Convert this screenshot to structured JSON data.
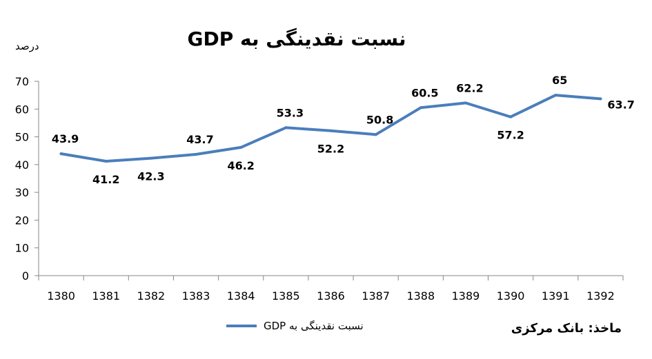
{
  "chart_data": {
    "type": "line",
    "title": "نسبت نقدینگی به GDP",
    "ylabel": "درصد",
    "xlabel": "",
    "categories": [
      "1380",
      "1381",
      "1382",
      "1383",
      "1384",
      "1385",
      "1386",
      "1387",
      "1388",
      "1389",
      "1390",
      "1391",
      "1392"
    ],
    "series": [
      {
        "name": "نسبت نقدینگی به GDP",
        "color": "#4a7ebb",
        "values": [
          43.9,
          41.2,
          42.3,
          43.7,
          46.2,
          53.3,
          52.2,
          50.8,
          60.5,
          62.2,
          57.2,
          65,
          63.7
        ]
      }
    ],
    "ylim": [
      0,
      70
    ],
    "yticks": [
      "0",
      "10",
      "20",
      "30",
      "40",
      "50",
      "60",
      "70"
    ],
    "grid": false,
    "legend_position": "bottom",
    "source": "ماخذ: بانک مرکزی"
  }
}
